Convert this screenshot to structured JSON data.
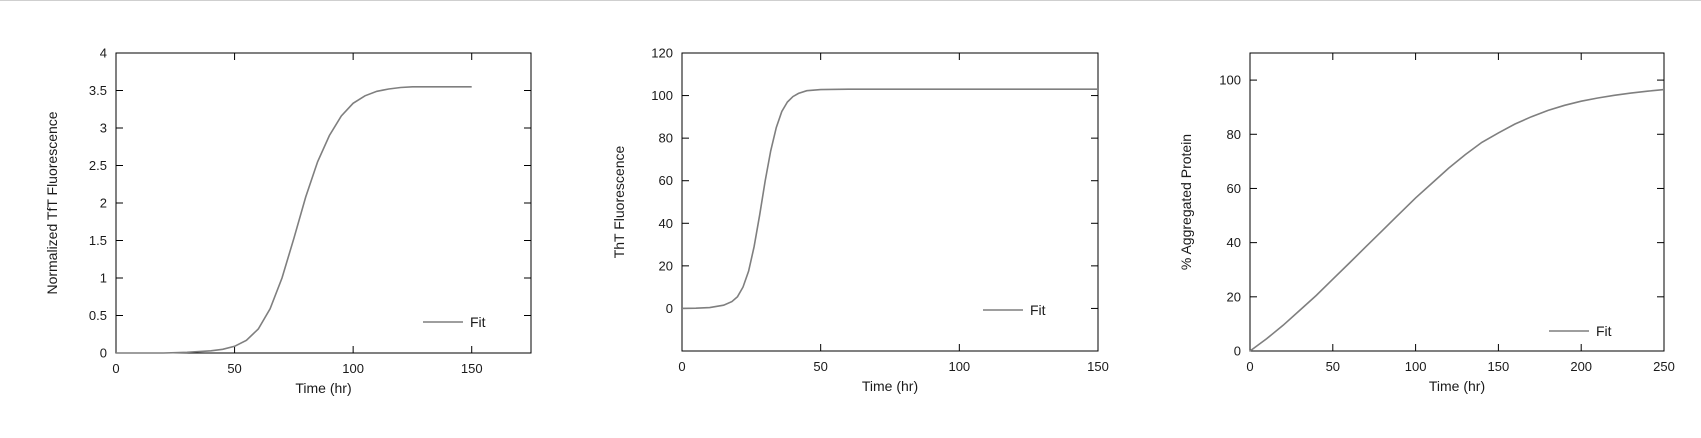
{
  "chart_data": [
    {
      "type": "line",
      "xlabel": "Time (hr)",
      "ylabel": "Normalized TfT Fluorescence",
      "xlim": [
        0,
        175
      ],
      "ylim": [
        0,
        4
      ],
      "xticks": [
        0,
        50,
        100,
        150
      ],
      "yticks": [
        0,
        0.5,
        1,
        1.5,
        2,
        2.5,
        3,
        3.5,
        4
      ],
      "legend": "bottom-right",
      "grid": false,
      "series": [
        {
          "name": "Fit",
          "color": "#7f7f7f",
          "x": [
            0,
            10,
            20,
            30,
            40,
            45,
            50,
            55,
            60,
            65,
            70,
            75,
            80,
            85,
            90,
            95,
            100,
            105,
            110,
            115,
            120,
            125,
            130,
            140,
            150
          ],
          "y": [
            0.0,
            0.0,
            0.0,
            0.01,
            0.03,
            0.05,
            0.09,
            0.17,
            0.32,
            0.59,
            1.0,
            1.53,
            2.08,
            2.55,
            2.9,
            3.16,
            3.33,
            3.43,
            3.49,
            3.52,
            3.54,
            3.55,
            3.55,
            3.55,
            3.55
          ]
        }
      ]
    },
    {
      "type": "line",
      "xlabel": "Time (hr)",
      "ylabel": "ThT Fluorescence",
      "xlim": [
        0,
        150
      ],
      "ylim": [
        -20,
        120
      ],
      "xticks": [
        0,
        50,
        100,
        150
      ],
      "yticks": [
        0,
        20,
        40,
        60,
        80,
        100,
        120
      ],
      "legend": "bottom-right",
      "grid": false,
      "series": [
        {
          "name": "Fit",
          "color": "#7f7f7f",
          "x": [
            0,
            5,
            10,
            15,
            18,
            20,
            22,
            24,
            26,
            28,
            30,
            32,
            34,
            36,
            38,
            40,
            42,
            45,
            50,
            60,
            80,
            100,
            150
          ],
          "y": [
            0.0,
            0.1,
            0.4,
            1.5,
            3.2,
            5.5,
            10.0,
            17.5,
            29.0,
            44.0,
            60.0,
            74.0,
            85.0,
            92.5,
            97.0,
            99.5,
            101.0,
            102.3,
            102.8,
            103.0,
            103.0,
            103.0,
            103.0
          ]
        }
      ]
    },
    {
      "type": "line",
      "xlabel": "Time (hr)",
      "ylabel": "% Aggregated Protein",
      "xlim": [
        0,
        250
      ],
      "ylim": [
        0,
        110
      ],
      "xticks": [
        0,
        50,
        100,
        150,
        200,
        250
      ],
      "yticks": [
        0,
        20,
        40,
        60,
        80,
        100
      ],
      "legend": "bottom-right",
      "grid": false,
      "series": [
        {
          "name": "Fit",
          "color": "#7f7f7f",
          "x": [
            0,
            10,
            20,
            30,
            40,
            50,
            60,
            70,
            80,
            90,
            100,
            110,
            120,
            130,
            140,
            150,
            160,
            170,
            180,
            190,
            200,
            210,
            220,
            230,
            240,
            250
          ],
          "y": [
            0,
            4.5,
            9.5,
            15.0,
            20.5,
            26.5,
            32.5,
            38.5,
            44.5,
            50.5,
            56.5,
            62.0,
            67.5,
            72.5,
            77.0,
            80.5,
            83.8,
            86.5,
            88.8,
            90.7,
            92.2,
            93.4,
            94.4,
            95.2,
            95.9,
            96.5
          ]
        }
      ]
    }
  ]
}
